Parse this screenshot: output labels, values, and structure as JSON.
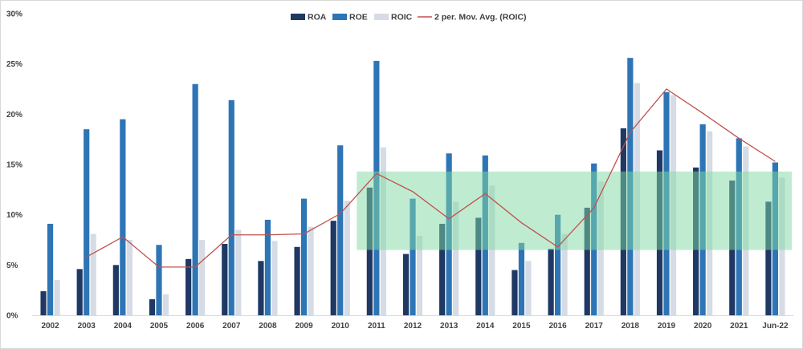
{
  "chart_data": {
    "type": "bar",
    "title": "",
    "xlabel": "",
    "ylabel": "",
    "ylim": [
      0,
      30
    ],
    "y_ticks": [
      0,
      5,
      10,
      15,
      20,
      25,
      30
    ],
    "y_tick_labels": [
      "0%",
      "5%",
      "10%",
      "15%",
      "20%",
      "25%",
      "30%"
    ],
    "grid": false,
    "legend_position": "top-center",
    "categories": [
      "2002",
      "2003",
      "2004",
      "2005",
      "2006",
      "2007",
      "2008",
      "2009",
      "2010",
      "2011",
      "2012",
      "2013",
      "2014",
      "2015",
      "2016",
      "2017",
      "2018",
      "2019",
      "2020",
      "2021",
      "Jun-22"
    ],
    "series": [
      {
        "name": "ROA",
        "type": "bar",
        "color": "#1f3864",
        "values": [
          2.4,
          4.6,
          5.0,
          1.6,
          5.6,
          7.1,
          5.4,
          6.8,
          9.4,
          12.7,
          6.1,
          9.1,
          9.7,
          4.5,
          6.6,
          10.7,
          18.6,
          16.4,
          14.7,
          13.4,
          11.3
        ]
      },
      {
        "name": "ROE",
        "type": "bar",
        "color": "#2e75b6",
        "values": [
          9.1,
          18.5,
          19.5,
          7.0,
          23.0,
          21.4,
          9.5,
          11.6,
          16.9,
          25.3,
          11.6,
          16.1,
          15.9,
          7.2,
          10.0,
          15.1,
          25.6,
          22.2,
          19.0,
          17.6,
          15.2
        ]
      },
      {
        "name": "ROIC",
        "type": "bar",
        "color": "#d6dce5",
        "values": [
          3.5,
          8.1,
          7.5,
          2.1,
          7.5,
          8.5,
          7.4,
          8.8,
          11.4,
          16.7,
          7.9,
          11.3,
          12.9,
          5.4,
          8.1,
          13.3,
          23.1,
          21.9,
          18.3,
          16.8,
          13.7
        ]
      },
      {
        "name": "2 per. Mov. Avg. (ROIC)",
        "type": "line",
        "color": "#c0504d",
        "values": [
          null,
          5.8,
          7.8,
          4.8,
          4.8,
          8.0,
          8.0,
          8.1,
          10.1,
          14.1,
          12.3,
          9.6,
          12.1,
          9.2,
          6.8,
          10.7,
          18.2,
          22.5,
          20.1,
          17.6,
          15.3
        ]
      }
    ],
    "shaded_band": {
      "y_from": 6.5,
      "y_to": 14.3,
      "x_from": "2011",
      "x_to": "Jun-22",
      "color": "#7fd9a4",
      "opacity": 0.5
    }
  }
}
